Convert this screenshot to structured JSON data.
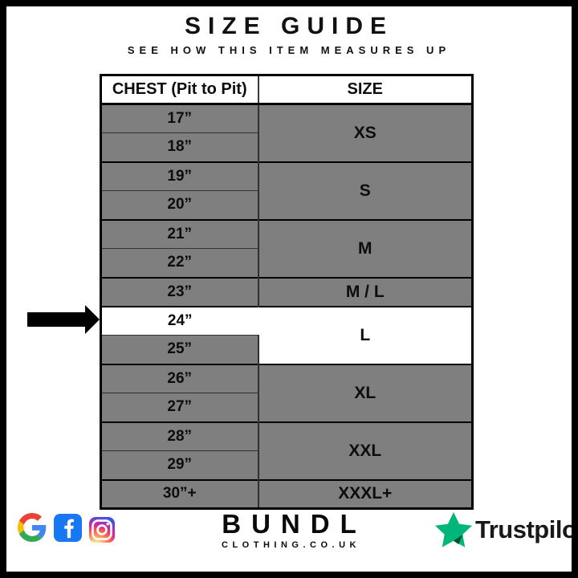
{
  "header": {
    "title": "SIZE GUIDE",
    "subtitle": "SEE HOW THIS ITEM MEASURES UP"
  },
  "size_table": {
    "columns": [
      "CHEST (Pit to Pit)",
      "SIZE"
    ],
    "groups": [
      {
        "size": "XS",
        "measurements": [
          "17”",
          "18”"
        ]
      },
      {
        "size": "S",
        "measurements": [
          "19”",
          "20”"
        ]
      },
      {
        "size": "M",
        "measurements": [
          "21”",
          "22”"
        ]
      },
      {
        "size": "M / L",
        "measurements": [
          "23”"
        ]
      },
      {
        "size": "L",
        "measurements": [
          "24”",
          "25”"
        ],
        "highlighted": true,
        "highlighted_measurements": [
          "24”"
        ]
      },
      {
        "size": "XL",
        "measurements": [
          "26”",
          "27”"
        ]
      },
      {
        "size": "XXL",
        "measurements": [
          "28”",
          "29”"
        ]
      },
      {
        "size": "XXXL+",
        "measurements": [
          "30”+"
        ]
      }
    ],
    "pointer": {
      "target_measurement": "24”"
    }
  },
  "footer": {
    "social_icons": [
      "google",
      "facebook",
      "instagram"
    ],
    "brand_name": "BUNDL",
    "brand_domain": "CLOTHING.CO.UK",
    "trustpilot_label": "Trustpilot"
  },
  "colors": {
    "row_gray": "#7f7f7f",
    "highlight_white": "#ffffff",
    "facebook_blue": "#1877F2",
    "trustpilot_green": "#00B67A",
    "trustpilot_shadow": "#005128",
    "google_blue": "#4285F4",
    "google_green": "#34A853",
    "google_yellow": "#FBBC05",
    "google_red": "#EA4335"
  }
}
